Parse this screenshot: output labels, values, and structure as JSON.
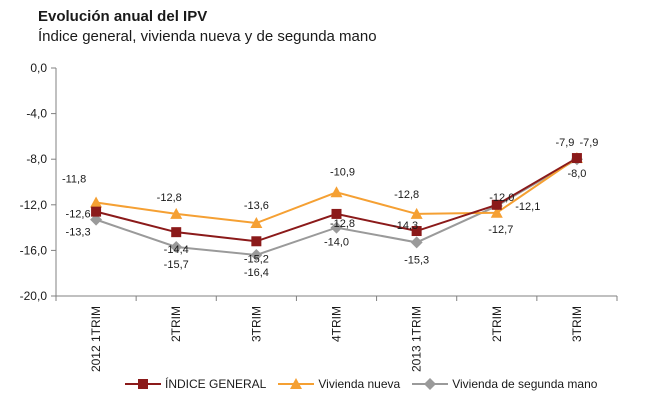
{
  "chart_data": {
    "type": "line",
    "title": "Evolución anual del IPV",
    "subtitle": "Índice general, vivienda nueva y de segunda mano",
    "categories": [
      "2012 1TRIM",
      "2TRIM",
      "3TRIM",
      "4TRIM",
      "2013 1TRIM",
      "2TRIM",
      "3TRIM"
    ],
    "ylim": [
      -20,
      0
    ],
    "yticks": [
      "0,0",
      "-4,0",
      "-8,0",
      "-12,0",
      "-16,0",
      "-20,0"
    ],
    "ytick_values": [
      0,
      -4,
      -8,
      -12,
      -16,
      -20
    ],
    "grid": false,
    "legend_position": "bottom",
    "series": [
      {
        "name": "ÍNDICE GENERAL",
        "color": "#8b1a1a",
        "marker": "square",
        "values": [
          -12.6,
          -14.4,
          -15.2,
          -12.8,
          -14.3,
          -12.0,
          -7.9
        ],
        "labels": [
          "-12,6",
          "-14,4",
          "-15,2",
          "-12,8",
          "-14,3",
          "-12,0",
          "-7,9"
        ]
      },
      {
        "name": "Vivienda nueva",
        "color": "#f5a033",
        "marker": "triangle",
        "values": [
          -11.8,
          -12.8,
          -13.6,
          -10.9,
          -12.8,
          -12.7,
          -7.9
        ],
        "labels": [
          "-11,8",
          "-12,8",
          "-13,6",
          "-10,9",
          "-12,8",
          "-12,7",
          "-7,9"
        ]
      },
      {
        "name": "Vivienda de segunda mano",
        "color": "#9a9a9a",
        "marker": "diamond",
        "values": [
          -13.3,
          -15.7,
          -16.4,
          -14.0,
          -15.3,
          -12.1,
          -8.0
        ],
        "labels": [
          "-13,3",
          "-15,7",
          "-16,4",
          "-14,0",
          "-15,3",
          "-12,1",
          "-8,0"
        ]
      }
    ]
  }
}
